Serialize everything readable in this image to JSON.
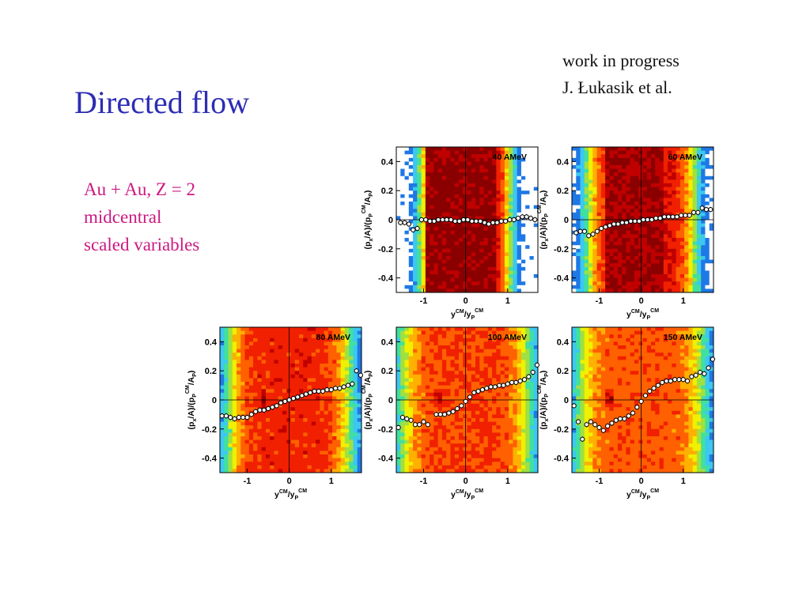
{
  "slide": {
    "title": "Directed flow",
    "note_lines": [
      "work in progress",
      "J. Łukasik et al."
    ],
    "description_lines": [
      "Au + Au, Z = 2",
      "midcentral",
      "scaled variables"
    ],
    "title_color": "#2d2db4",
    "description_color": "#cc1880"
  },
  "chart_data": [
    {
      "type": "heatmap",
      "title": "40 AMeV",
      "xlabel": "yCM/yPCM",
      "ylabel": "(px/A)/(pPCM/AP)",
      "xlim": [
        -1.65,
        1.72
      ],
      "ylim": [
        -0.5,
        0.5
      ],
      "xticks": [
        -1,
        0,
        1
      ],
      "yticks": [
        -0.4,
        -0.2,
        0,
        0.2,
        0.4
      ],
      "xtick_labels": [
        "-1",
        "0",
        "1"
      ],
      "ytick_labels": [
        "-0.4",
        "-0.2",
        "0",
        "0.2",
        "0.4"
      ],
      "grid": false,
      "hist_colors": [
        "#ffffff",
        "#1e78e6",
        "#3cc8f0",
        "#40e0a0",
        "#a0e040",
        "#f0f000",
        "#ffb000",
        "#ff6000",
        "#f02000",
        "#c00000",
        "#8a0000"
      ],
      "density": {
        "width": 0.5,
        "core_center": -0.55,
        "core_size": 0.15,
        "core_level": 1.0,
        "base": 0.92
      },
      "series": [
        {
          "points": [
            [
              -1.55,
              -0.02
            ],
            [
              -1.45,
              -0.02
            ],
            [
              -1.35,
              -0.03
            ],
            [
              -1.25,
              -0.07
            ],
            [
              -1.15,
              -0.06
            ],
            [
              -1.05,
              0.0
            ],
            [
              -0.95,
              0.0
            ],
            [
              -0.85,
              -0.01
            ],
            [
              -0.75,
              -0.01
            ],
            [
              -0.65,
              0.0
            ],
            [
              -0.55,
              0.0
            ],
            [
              -0.45,
              0.0
            ],
            [
              -0.35,
              0.0
            ],
            [
              -0.25,
              -0.01
            ],
            [
              -0.15,
              -0.01
            ],
            [
              -0.05,
              0.0
            ],
            [
              0.05,
              0.0
            ],
            [
              0.15,
              -0.01
            ],
            [
              0.25,
              -0.01
            ],
            [
              0.35,
              -0.01
            ],
            [
              0.45,
              -0.02
            ],
            [
              0.55,
              -0.03
            ],
            [
              0.65,
              -0.02
            ],
            [
              0.75,
              -0.02
            ],
            [
              0.85,
              -0.01
            ],
            [
              0.95,
              -0.01
            ],
            [
              1.05,
              0.0
            ],
            [
              1.15,
              0.0
            ],
            [
              1.25,
              0.01
            ],
            [
              1.35,
              0.02
            ],
            [
              1.45,
              0.02
            ],
            [
              1.55,
              0.01
            ],
            [
              1.65,
              0.0
            ]
          ]
        }
      ]
    },
    {
      "type": "heatmap",
      "title": "60 AMeV",
      "xlabel": "yCM/yPCM",
      "ylabel": "(px/A)/(pPCM/AP)",
      "xlim": [
        -1.65,
        1.72
      ],
      "ylim": [
        -0.5,
        0.5
      ],
      "xticks": [
        -1,
        0,
        1
      ],
      "yticks": [
        -0.4,
        -0.2,
        0,
        0.2,
        0.4
      ],
      "xtick_labels": [
        "-1",
        "0",
        "1"
      ],
      "ytick_labels": [
        "-0.4",
        "-0.2",
        "0",
        "0.2",
        "0.4"
      ],
      "grid": false,
      "hist_colors": [
        "#ffffff",
        "#1e78e6",
        "#3cc8f0",
        "#40e0a0",
        "#a0e040",
        "#f0f000",
        "#ffb000",
        "#ff6000",
        "#f02000",
        "#c00000",
        "#8a0000"
      ],
      "density": {
        "width": 0.6,
        "core_center": -0.5,
        "core_size": 0.2,
        "core_level": 1.0,
        "base": 0.85
      },
      "series": [
        {
          "points": [
            [
              -1.55,
              -0.09
            ],
            [
              -1.45,
              -0.08
            ],
            [
              -1.35,
              -0.08
            ],
            [
              -1.25,
              -0.11
            ],
            [
              -1.15,
              -0.1
            ],
            [
              -1.05,
              -0.08
            ],
            [
              -0.95,
              -0.06
            ],
            [
              -0.85,
              -0.05
            ],
            [
              -0.75,
              -0.04
            ],
            [
              -0.65,
              -0.03
            ],
            [
              -0.55,
              -0.03
            ],
            [
              -0.45,
              -0.02
            ],
            [
              -0.35,
              -0.02
            ],
            [
              -0.25,
              -0.01
            ],
            [
              -0.15,
              -0.01
            ],
            [
              -0.05,
              -0.01
            ],
            [
              0.05,
              0.0
            ],
            [
              0.15,
              0.0
            ],
            [
              0.25,
              0.0
            ],
            [
              0.35,
              0.01
            ],
            [
              0.45,
              0.01
            ],
            [
              0.55,
              0.02
            ],
            [
              0.65,
              0.02
            ],
            [
              0.75,
              0.02
            ],
            [
              0.85,
              0.02
            ],
            [
              0.95,
              0.03
            ],
            [
              1.05,
              0.03
            ],
            [
              1.15,
              0.03
            ],
            [
              1.25,
              0.05
            ],
            [
              1.35,
              0.05
            ],
            [
              1.45,
              0.08
            ],
            [
              1.55,
              0.07
            ],
            [
              1.65,
              0.07
            ]
          ]
        }
      ]
    },
    {
      "type": "heatmap",
      "title": "80 AMeV",
      "xlabel": "yCM/yPCM",
      "ylabel": "(px/A)/(pPCM/AP)",
      "xlim": [
        -1.65,
        1.72
      ],
      "ylim": [
        -0.5,
        0.5
      ],
      "xticks": [
        -1,
        0,
        1
      ],
      "yticks": [
        -0.4,
        -0.2,
        0,
        0.2,
        0.4
      ],
      "xtick_labels": [
        "-1",
        "0",
        "1"
      ],
      "ytick_labels": [
        "-0.4",
        "-0.2",
        "0",
        "0.2",
        "0.4"
      ],
      "grid": false,
      "hist_colors": [
        "#ffffff",
        "#1e78e6",
        "#3cc8f0",
        "#40e0a0",
        "#a0e040",
        "#f0f000",
        "#ffb000",
        "#ff6000",
        "#f02000",
        "#c00000",
        "#8a0000"
      ],
      "density": {
        "width": 0.68,
        "core_center": -0.6,
        "core_size": 0.12,
        "core_level": 0.98,
        "base": 0.8
      },
      "series": [
        {
          "points": [
            [
              -1.6,
              -0.11
            ],
            [
              -1.5,
              -0.11
            ],
            [
              -1.4,
              -0.12
            ],
            [
              -1.3,
              -0.13
            ],
            [
              -1.2,
              -0.12
            ],
            [
              -1.1,
              -0.12
            ],
            [
              -1.0,
              -0.12
            ],
            [
              -0.9,
              -0.1
            ],
            [
              -0.8,
              -0.08
            ],
            [
              -0.7,
              -0.07
            ],
            [
              -0.6,
              -0.07
            ],
            [
              -0.5,
              -0.06
            ],
            [
              -0.4,
              -0.05
            ],
            [
              -0.3,
              -0.04
            ],
            [
              -0.2,
              -0.02
            ],
            [
              -0.1,
              -0.01
            ],
            [
              0.0,
              0.0
            ],
            [
              0.1,
              0.01
            ],
            [
              0.2,
              0.02
            ],
            [
              0.3,
              0.03
            ],
            [
              0.4,
              0.04
            ],
            [
              0.5,
              0.05
            ],
            [
              0.6,
              0.06
            ],
            [
              0.7,
              0.06
            ],
            [
              0.8,
              0.06
            ],
            [
              0.9,
              0.07
            ],
            [
              1.0,
              0.07
            ],
            [
              1.1,
              0.08
            ],
            [
              1.2,
              0.08
            ],
            [
              1.3,
              0.09
            ],
            [
              1.4,
              0.1
            ],
            [
              1.5,
              0.11
            ],
            [
              1.6,
              0.2
            ],
            [
              1.7,
              0.17
            ]
          ]
        }
      ]
    },
    {
      "type": "heatmap",
      "title": "100 AMeV",
      "xlabel": "yCM/yPCM",
      "ylabel": "(px/A)/(pPCM/AP)",
      "xlim": [
        -1.65,
        1.72
      ],
      "ylim": [
        -0.5,
        0.5
      ],
      "xticks": [
        -1,
        0,
        1
      ],
      "yticks": [
        -0.4,
        -0.2,
        0,
        0.2,
        0.4
      ],
      "xtick_labels": [
        "-1",
        "0",
        "1"
      ],
      "ytick_labels": [
        "-0.4",
        "-0.2",
        "0",
        "0.2",
        "0.4"
      ],
      "grid": false,
      "hist_colors": [
        "#ffffff",
        "#1e78e6",
        "#3cc8f0",
        "#40e0a0",
        "#a0e040",
        "#f0f000",
        "#ffb000",
        "#ff6000",
        "#f02000",
        "#c00000",
        "#8a0000"
      ],
      "density": {
        "width": 0.72,
        "core_center": -0.65,
        "core_size": 0.12,
        "core_level": 0.98,
        "base": 0.75
      },
      "series": [
        {
          "points": [
            [
              -1.6,
              -0.19
            ],
            [
              -1.5,
              -0.12
            ],
            [
              -1.4,
              -0.13
            ],
            [
              -1.3,
              -0.14
            ],
            [
              -1.2,
              -0.17
            ],
            [
              -1.1,
              -0.17
            ],
            [
              -1.0,
              -0.15
            ],
            [
              -0.9,
              -0.17
            ],
            [
              -0.7,
              -0.1
            ],
            [
              -0.6,
              -0.1
            ],
            [
              -0.5,
              -0.1
            ],
            [
              -0.4,
              -0.09
            ],
            [
              -0.3,
              -0.08
            ],
            [
              -0.2,
              -0.06
            ],
            [
              -0.1,
              -0.04
            ],
            [
              0.0,
              -0.01
            ],
            [
              0.1,
              0.02
            ],
            [
              0.2,
              0.05
            ],
            [
              0.3,
              0.06
            ],
            [
              0.4,
              0.07
            ],
            [
              0.5,
              0.08
            ],
            [
              0.6,
              0.09
            ],
            [
              0.7,
              0.09
            ],
            [
              0.8,
              0.1
            ],
            [
              0.9,
              0.1
            ],
            [
              1.0,
              0.11
            ],
            [
              1.1,
              0.12
            ],
            [
              1.2,
              0.12
            ],
            [
              1.3,
              0.13
            ],
            [
              1.4,
              0.14
            ],
            [
              1.5,
              0.16
            ],
            [
              1.6,
              0.19
            ],
            [
              1.7,
              0.24
            ]
          ]
        }
      ]
    },
    {
      "type": "heatmap",
      "title": "150 AMeV",
      "xlabel": "yCM/yPCM",
      "ylabel": "(px/A)/(pPCM/AP)",
      "xlim": [
        -1.65,
        1.72
      ],
      "ylim": [
        -0.5,
        0.5
      ],
      "xticks": [
        -1,
        0,
        1
      ],
      "yticks": [
        -0.4,
        -0.2,
        0,
        0.2,
        0.4
      ],
      "xtick_labels": [
        "-1",
        "0",
        "1"
      ],
      "ytick_labels": [
        "-0.4",
        "-0.2",
        "0",
        "0.2",
        "0.4"
      ],
      "grid": false,
      "hist_colors": [
        "#ffffff",
        "#1e78e6",
        "#3cc8f0",
        "#40e0a0",
        "#a0e040",
        "#f0f000",
        "#ffb000",
        "#ff6000",
        "#f02000",
        "#c00000",
        "#8a0000"
      ],
      "density": {
        "width": 0.7,
        "core_center": -0.75,
        "core_size": 0.12,
        "core_level": 0.98,
        "base": 0.72
      },
      "series": [
        {
          "points": [
            [
              -1.6,
              -0.04
            ],
            [
              -1.5,
              -0.15
            ],
            [
              -1.4,
              -0.27
            ],
            [
              -1.3,
              -0.17
            ],
            [
              -1.2,
              -0.15
            ],
            [
              -1.1,
              -0.17
            ],
            [
              -1.0,
              -0.19
            ],
            [
              -0.9,
              -0.21
            ],
            [
              -0.8,
              -0.18
            ],
            [
              -0.7,
              -0.16
            ],
            [
              -0.6,
              -0.14
            ],
            [
              -0.5,
              -0.13
            ],
            [
              -0.4,
              -0.13
            ],
            [
              -0.3,
              -0.11
            ],
            [
              -0.2,
              -0.09
            ],
            [
              -0.1,
              -0.05
            ],
            [
              0.0,
              -0.01
            ],
            [
              0.1,
              0.03
            ],
            [
              0.2,
              0.06
            ],
            [
              0.3,
              0.08
            ],
            [
              0.4,
              0.1
            ],
            [
              0.5,
              0.12
            ],
            [
              0.6,
              0.13
            ],
            [
              0.7,
              0.13
            ],
            [
              0.8,
              0.14
            ],
            [
              0.9,
              0.14
            ],
            [
              1.0,
              0.14
            ],
            [
              1.1,
              0.13
            ],
            [
              1.2,
              0.16
            ],
            [
              1.3,
              0.17
            ],
            [
              1.4,
              0.19
            ],
            [
              1.5,
              0.18
            ],
            [
              1.6,
              0.22
            ],
            [
              1.7,
              0.28
            ]
          ]
        }
      ]
    }
  ]
}
